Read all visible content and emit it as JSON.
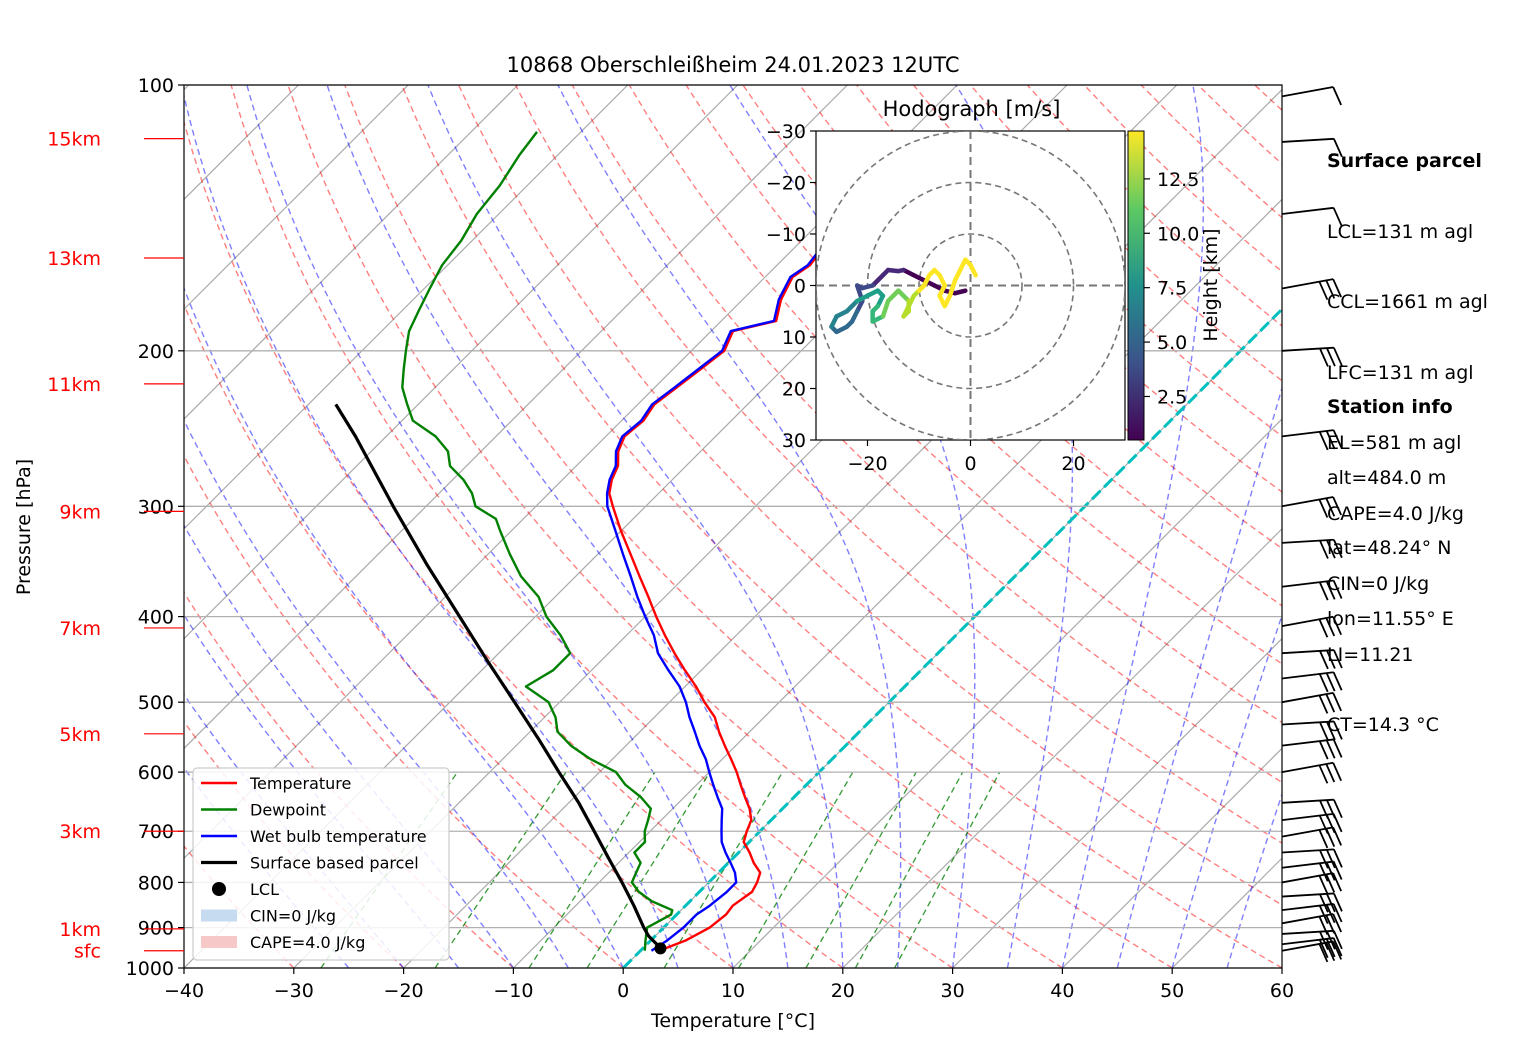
{
  "chart_data": {
    "type": "line",
    "title": "10868 Oberschleißheim 24.01.2023 12UTC",
    "xlabel": "Temperature [°C]",
    "ylabel": "Pressure [hPa]",
    "xlim": [
      -40,
      60
    ],
    "ylim": [
      1000,
      100
    ],
    "x_ticks": [
      -40,
      -30,
      -20,
      -10,
      0,
      10,
      20,
      30,
      40,
      50,
      60
    ],
    "x_tick_labels": [
      "−40",
      "−30",
      "−20",
      "−10",
      "0",
      "10",
      "20",
      "30",
      "40",
      "50",
      "60"
    ],
    "y_ticks": [
      1000,
      900,
      800,
      700,
      600,
      500,
      400,
      300,
      200,
      100
    ],
    "y_tick_labels": [
      "1000",
      "900",
      "800",
      "700",
      "600",
      "500",
      "400",
      "300",
      "200",
      "100"
    ],
    "height_labels": [
      {
        "label": "sfc",
        "p": 956
      },
      {
        "label": "1km",
        "p": 903
      },
      {
        "label": "3km",
        "p": 700
      },
      {
        "label": "5km",
        "p": 543
      },
      {
        "label": "7km",
        "p": 412
      },
      {
        "label": "9km",
        "p": 304
      },
      {
        "label": "11km",
        "p": 218
      },
      {
        "label": "13km",
        "p": 157
      },
      {
        "label": "15km",
        "p": 115
      }
    ],
    "skew": true,
    "grid": true,
    "legend": "lower-left",
    "series": [
      {
        "name": "Temperature",
        "color": "#ff0000",
        "points": [
          [
            956,
            1.7
          ],
          [
            930,
            3.2
          ],
          [
            900,
            4.2
          ],
          [
            870,
            4.5
          ],
          [
            850,
            4.3
          ],
          [
            820,
            4.8
          ],
          [
            800,
            4.4
          ],
          [
            780,
            3.8
          ],
          [
            760,
            2.3
          ],
          [
            740,
            1.0
          ],
          [
            720,
            -0.5
          ],
          [
            700,
            -1.2
          ],
          [
            680,
            -1.8
          ],
          [
            660,
            -3.0
          ],
          [
            640,
            -4.5
          ],
          [
            620,
            -6.0
          ],
          [
            600,
            -7.5
          ],
          [
            580,
            -9.2
          ],
          [
            560,
            -11.0
          ],
          [
            540,
            -12.8
          ],
          [
            520,
            -14.5
          ],
          [
            500,
            -16.8
          ],
          [
            480,
            -19.0
          ],
          [
            460,
            -21.5
          ],
          [
            440,
            -24.0
          ],
          [
            420,
            -26.5
          ],
          [
            400,
            -29.0
          ],
          [
            380,
            -31.5
          ],
          [
            360,
            -34.2
          ],
          [
            340,
            -37.0
          ],
          [
            320,
            -40.0
          ],
          [
            300,
            -43.0
          ],
          [
            290,
            -44.5
          ],
          [
            280,
            -45.5
          ],
          [
            270,
            -46.2
          ],
          [
            260,
            -47.5
          ],
          [
            250,
            -48.3
          ],
          [
            240,
            -48.0
          ],
          [
            230,
            -48.5
          ],
          [
            220,
            -48.0
          ],
          [
            210,
            -47.5
          ],
          [
            200,
            -47.0
          ],
          [
            190,
            -48.0
          ],
          [
            185,
            -45.0
          ],
          [
            175,
            -46.5
          ],
          [
            165,
            -47.5
          ],
          [
            160,
            -47.0
          ],
          [
            150,
            -47.5
          ],
          [
            140,
            -48.5
          ],
          [
            130,
            -51.0
          ],
          [
            125,
            -51.5
          ],
          [
            120,
            -53.5
          ],
          [
            116,
            -54.0
          ],
          [
            113,
            -54.0
          ]
        ]
      },
      {
        "name": "Dewpoint",
        "color": "#008000",
        "points": [
          [
            956,
            0.4
          ],
          [
            930,
            -0.5
          ],
          [
            900,
            -1.5
          ],
          [
            870,
            -0.5
          ],
          [
            860,
            -0.8
          ],
          [
            840,
            -3.5
          ],
          [
            820,
            -5.5
          ],
          [
            800,
            -7.0
          ],
          [
            780,
            -7.5
          ],
          [
            760,
            -8.0
          ],
          [
            740,
            -9.5
          ],
          [
            720,
            -9.5
          ],
          [
            700,
            -10.5
          ],
          [
            680,
            -11.2
          ],
          [
            660,
            -12.0
          ],
          [
            640,
            -14.0
          ],
          [
            620,
            -16.5
          ],
          [
            600,
            -18.5
          ],
          [
            580,
            -22.0
          ],
          [
            560,
            -25.0
          ],
          [
            540,
            -27.5
          ],
          [
            520,
            -29.0
          ],
          [
            500,
            -31.0
          ],
          [
            480,
            -34.5
          ],
          [
            460,
            -33.5
          ],
          [
            440,
            -33.5
          ],
          [
            420,
            -36.0
          ],
          [
            400,
            -39.0
          ],
          [
            380,
            -41.5
          ],
          [
            360,
            -45.0
          ],
          [
            340,
            -48.0
          ],
          [
            320,
            -51.0
          ],
          [
            310,
            -52.5
          ],
          [
            300,
            -55.5
          ],
          [
            290,
            -57.0
          ],
          [
            280,
            -59.0
          ],
          [
            270,
            -61.5
          ],
          [
            260,
            -63.0
          ],
          [
            250,
            -65.5
          ],
          [
            240,
            -69.0
          ],
          [
            230,
            -71.0
          ],
          [
            220,
            -73.0
          ],
          [
            210,
            -74.5
          ],
          [
            200,
            -76.0
          ],
          [
            190,
            -77.5
          ],
          [
            180,
            -78.5
          ],
          [
            170,
            -79.5
          ],
          [
            160,
            -80.5
          ],
          [
            150,
            -81.0
          ],
          [
            140,
            -82.0
          ],
          [
            130,
            -82.5
          ],
          [
            120,
            -83.5
          ],
          [
            113,
            -84.0
          ]
        ]
      },
      {
        "name": "Wet bulb temperature",
        "color": "#0000ff",
        "points": [
          [
            956,
            1.0
          ],
          [
            930,
            1.5
          ],
          [
            900,
            1.8
          ],
          [
            870,
            1.8
          ],
          [
            850,
            2.2
          ],
          [
            820,
            2.5
          ],
          [
            800,
            2.5
          ],
          [
            780,
            1.5
          ],
          [
            760,
            0.2
          ],
          [
            740,
            -1.2
          ],
          [
            720,
            -2.5
          ],
          [
            700,
            -3.5
          ],
          [
            680,
            -4.5
          ],
          [
            660,
            -5.5
          ],
          [
            640,
            -7.0
          ],
          [
            620,
            -8.5
          ],
          [
            600,
            -10.0
          ],
          [
            580,
            -11.5
          ],
          [
            560,
            -13.3
          ],
          [
            540,
            -15.0
          ],
          [
            520,
            -16.8
          ],
          [
            500,
            -18.5
          ],
          [
            480,
            -20.5
          ],
          [
            460,
            -23.0
          ],
          [
            440,
            -25.5
          ],
          [
            420,
            -27.5
          ],
          [
            400,
            -30.0
          ],
          [
            380,
            -32.5
          ],
          [
            360,
            -35.0
          ],
          [
            340,
            -37.7
          ],
          [
            320,
            -40.5
          ],
          [
            300,
            -43.5
          ],
          [
            290,
            -44.7
          ],
          [
            280,
            -45.7
          ],
          [
            270,
            -46.4
          ],
          [
            260,
            -47.7
          ],
          [
            250,
            -48.5
          ],
          [
            240,
            -48.2
          ],
          [
            230,
            -48.7
          ],
          [
            220,
            -48.2
          ],
          [
            210,
            -47.7
          ],
          [
            200,
            -47.2
          ],
          [
            190,
            -48.2
          ],
          [
            185,
            -45.2
          ],
          [
            175,
            -46.7
          ],
          [
            165,
            -47.7
          ],
          [
            160,
            -47.2
          ],
          [
            150,
            -47.7
          ],
          [
            140,
            -48.7
          ],
          [
            130,
            -51.2
          ],
          [
            125,
            -51.7
          ],
          [
            120,
            -53.7
          ],
          [
            116,
            -54.2
          ],
          [
            113,
            -54.2
          ]
        ]
      },
      {
        "name": "Surface based parcel",
        "color": "#000000",
        "points": [
          [
            956,
            1.7
          ],
          [
            940,
            0.9
          ],
          [
            920,
            -0.6
          ],
          [
            900,
            -1.8
          ],
          [
            850,
            -4.7
          ],
          [
            800,
            -7.9
          ],
          [
            750,
            -11.4
          ],
          [
            700,
            -15.1
          ],
          [
            650,
            -19.1
          ],
          [
            600,
            -23.7
          ],
          [
            550,
            -28.6
          ],
          [
            500,
            -34.1
          ],
          [
            450,
            -40.2
          ],
          [
            400,
            -46.9
          ],
          [
            350,
            -54.5
          ],
          [
            300,
            -63.0
          ],
          [
            250,
            -72.8
          ],
          [
            230,
            -77.5
          ]
        ]
      }
    ],
    "lcl": {
      "name": "LCL",
      "p": 950,
      "t": 1.6
    },
    "legend_entries": [
      "Temperature",
      "Dewpoint",
      "Wet bulb temperature",
      "Surface based parcel",
      "LCL",
      "CIN=0 J/kg",
      "CAPE=4.0 J/kg"
    ],
    "wind_barbs_p": [
      956,
      940,
      915,
      890,
      860,
      830,
      800,
      770,
      740,
      710,
      680,
      650,
      600,
      560,
      530,
      500,
      470,
      440,
      410,
      370,
      330,
      300,
      250,
      200,
      170,
      140,
      116,
      103
    ],
    "hodograph": {
      "title": "Hodograph [m/s]",
      "xlim": [
        -30,
        30
      ],
      "ylim": [
        -30,
        30
      ],
      "ticks": [
        -30,
        -20,
        -10,
        0,
        10,
        20,
        30
      ],
      "tick_labels_x": [
        "−20",
        "0",
        "20"
      ],
      "tick_labels_y": [
        "30",
        "20",
        "10",
        "0",
        "−10",
        "−20",
        "−30"
      ],
      "rings": [
        10,
        20,
        30
      ],
      "colorbar_label": "Height [km]",
      "colorbar_ticks": [
        "2.5",
        "5.0",
        "7.5",
        "10.0",
        "12.5"
      ],
      "colorbar_range": [
        0.5,
        14.7
      ],
      "trace": [
        [
          -1,
          -1,
          0.5
        ],
        [
          -3,
          -1.5,
          0.8
        ],
        [
          -5,
          -1,
          1.1
        ],
        [
          -7,
          0,
          1.3
        ],
        [
          -9,
          1,
          1.5
        ],
        [
          -11,
          2,
          1.7
        ],
        [
          -13,
          3,
          1.9
        ],
        [
          -14,
          2.8,
          2.1
        ],
        [
          -16,
          3,
          2.3
        ],
        [
          -17,
          2,
          2.6
        ],
        [
          -18,
          1,
          2.9
        ],
        [
          -19,
          0,
          3.2
        ],
        [
          -21,
          -0.5,
          3.5
        ],
        [
          -22,
          0,
          3.8
        ],
        [
          -21,
          -3,
          4.1
        ],
        [
          -22,
          -5,
          4.5
        ],
        [
          -23,
          -7,
          4.9
        ],
        [
          -24,
          -8,
          5.3
        ],
        [
          -26,
          -9,
          5.7
        ],
        [
          -27,
          -8,
          6.1
        ],
        [
          -26,
          -6,
          6.5
        ],
        [
          -24,
          -5,
          6.9
        ],
        [
          -22,
          -3,
          7.3
        ],
        [
          -20,
          -2,
          7.7
        ],
        [
          -18,
          -1,
          8.1
        ],
        [
          -17,
          -2,
          8.5
        ],
        [
          -18,
          -4,
          8.9
        ],
        [
          -19,
          -5,
          9.3
        ],
        [
          -19,
          -7,
          9.7
        ],
        [
          -17,
          -6,
          10.1
        ],
        [
          -16,
          -3,
          10.5
        ],
        [
          -14,
          -1,
          10.9
        ],
        [
          -13,
          -2,
          11.3
        ],
        [
          -12,
          -3,
          11.6
        ],
        [
          -12,
          -5,
          11.9
        ],
        [
          -13,
          -6,
          12.2
        ],
        [
          -12,
          -4,
          12.5
        ],
        [
          -11,
          -2,
          12.8
        ],
        [
          -10,
          -1,
          13.1
        ],
        [
          -9,
          0,
          13.3
        ],
        [
          -8,
          2,
          13.5
        ],
        [
          -7,
          3,
          13.7
        ],
        [
          -6,
          2,
          13.9
        ],
        [
          -5,
          0,
          14.1
        ],
        [
          -6,
          -2,
          14.2
        ],
        [
          -5,
          -4,
          14.3
        ],
        [
          -4,
          -2,
          14.4
        ],
        [
          -3,
          1,
          14.5
        ],
        [
          -2,
          3,
          14.6
        ],
        [
          -1,
          5,
          14.6
        ],
        [
          0,
          4,
          14.7
        ],
        [
          1,
          2,
          14.7
        ]
      ]
    }
  },
  "surface_parcel": {
    "heading": "Surface parcel",
    "lines": [
      "LCL=131 m agl",
      "CCL=1661 m agl",
      "LFC=131 m agl",
      "EL=581 m agl",
      "CAPE=4.0 J/kg",
      "CIN=0 J/kg",
      "LI=11.21",
      "CT=14.3 °C"
    ]
  },
  "station_info": {
    "heading": "Station info",
    "lines": [
      "alt=484.0 m",
      "lat=48.24° N",
      "lon=11.55° E"
    ]
  }
}
